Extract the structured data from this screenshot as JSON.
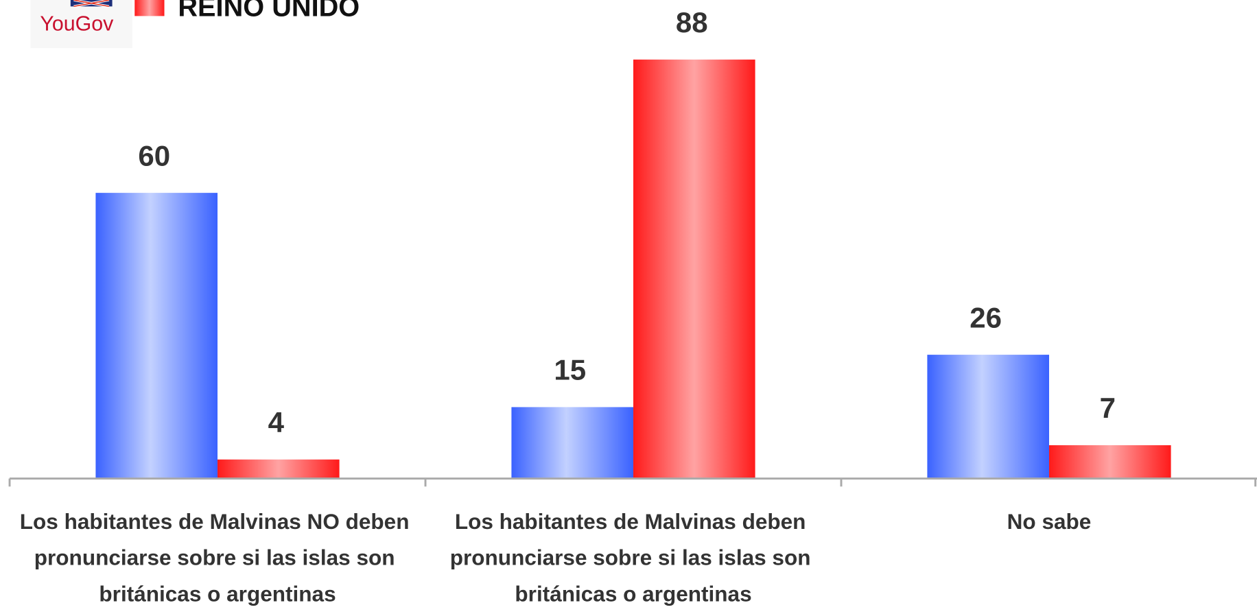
{
  "logo": "YouGov",
  "chart_data": {
    "type": "bar",
    "categories": [
      "Los habitantes de Malvinas NO deben pronunciarse sobre si las islas son británicas o argentinas",
      "Los habitantes de Malvinas deben pronunciarse sobre si las islas son británicas o argentinas",
      "No sabe"
    ],
    "series": [
      {
        "color": "#3a62ff",
        "values": [
          60,
          15,
          26
        ]
      },
      {
        "name": "REINO UNIDO",
        "color": "#ff1a1a",
        "values": [
          4,
          88,
          7
        ]
      }
    ],
    "ylim": [
      0,
      100
    ]
  }
}
